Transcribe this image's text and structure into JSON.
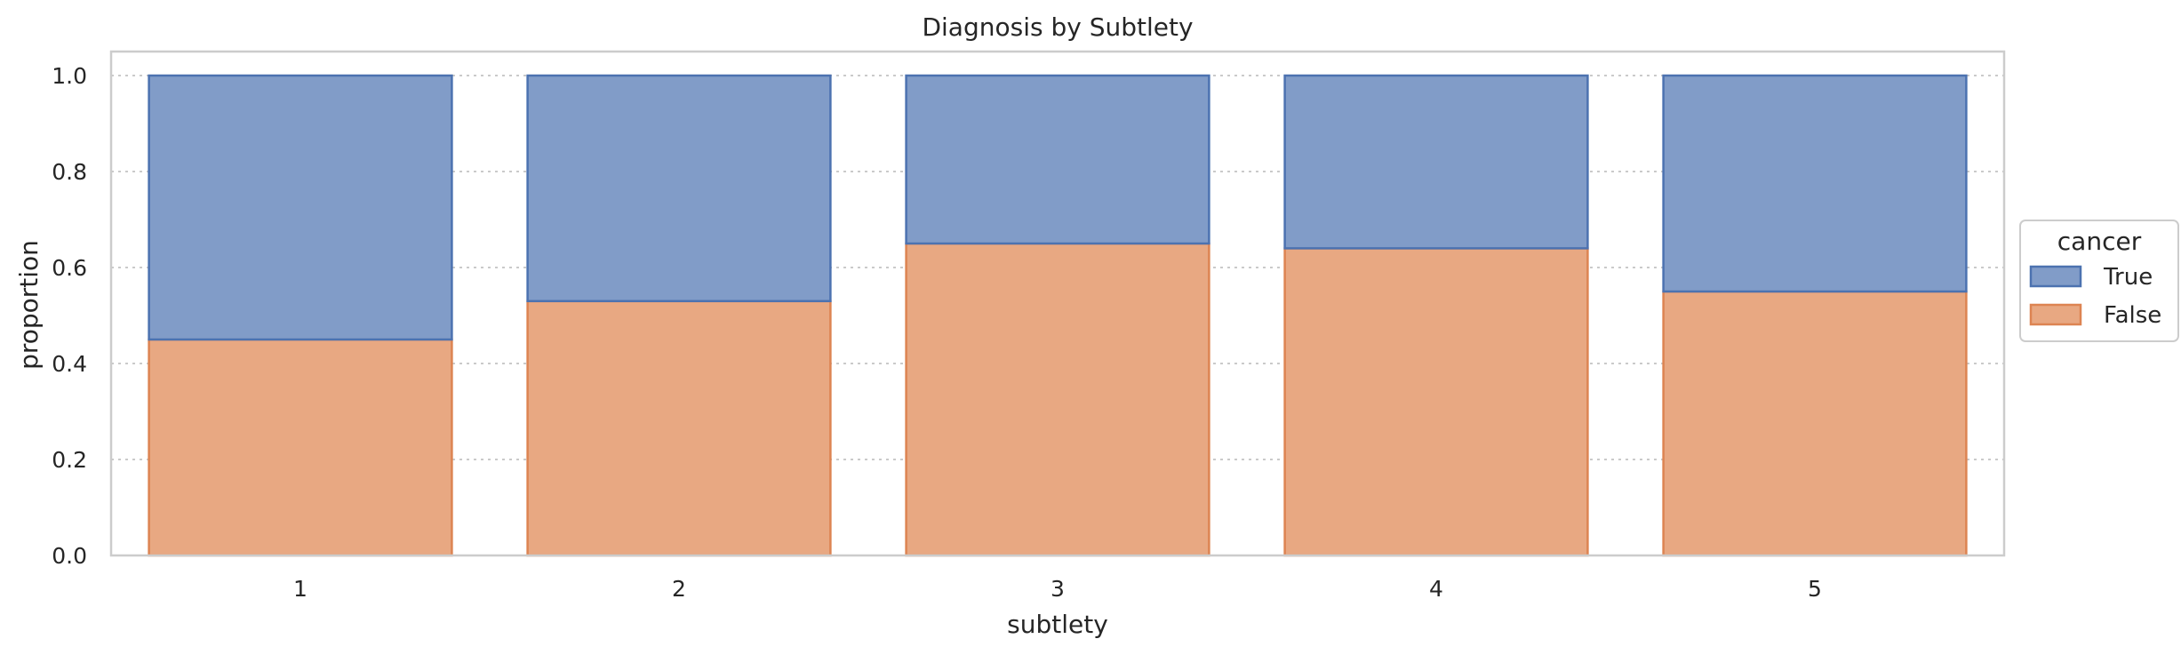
{
  "chart_data": {
    "type": "bar",
    "stacked": true,
    "title": "Diagnosis by Subtlety",
    "xlabel": "subtlety",
    "ylabel": "proportion",
    "categories": [
      "1",
      "2",
      "3",
      "4",
      "5"
    ],
    "yticks": [
      "0.0",
      "0.2",
      "0.4",
      "0.6",
      "0.8",
      "1.0"
    ],
    "ylim": [
      0,
      1.05
    ],
    "grid": true,
    "legend": {
      "title": "cancer",
      "placement": "right-outside"
    },
    "series": [
      {
        "name": "False",
        "values": [
          0.45,
          0.53,
          0.65,
          0.64,
          0.55
        ],
        "color": "#e8a882",
        "edge": "#dd8452"
      },
      {
        "name": "True",
        "values": [
          0.55,
          0.47,
          0.35,
          0.36,
          0.45
        ],
        "color": "#819cc8",
        "edge": "#4c72b0"
      }
    ],
    "legend_order": [
      "True",
      "False"
    ]
  }
}
